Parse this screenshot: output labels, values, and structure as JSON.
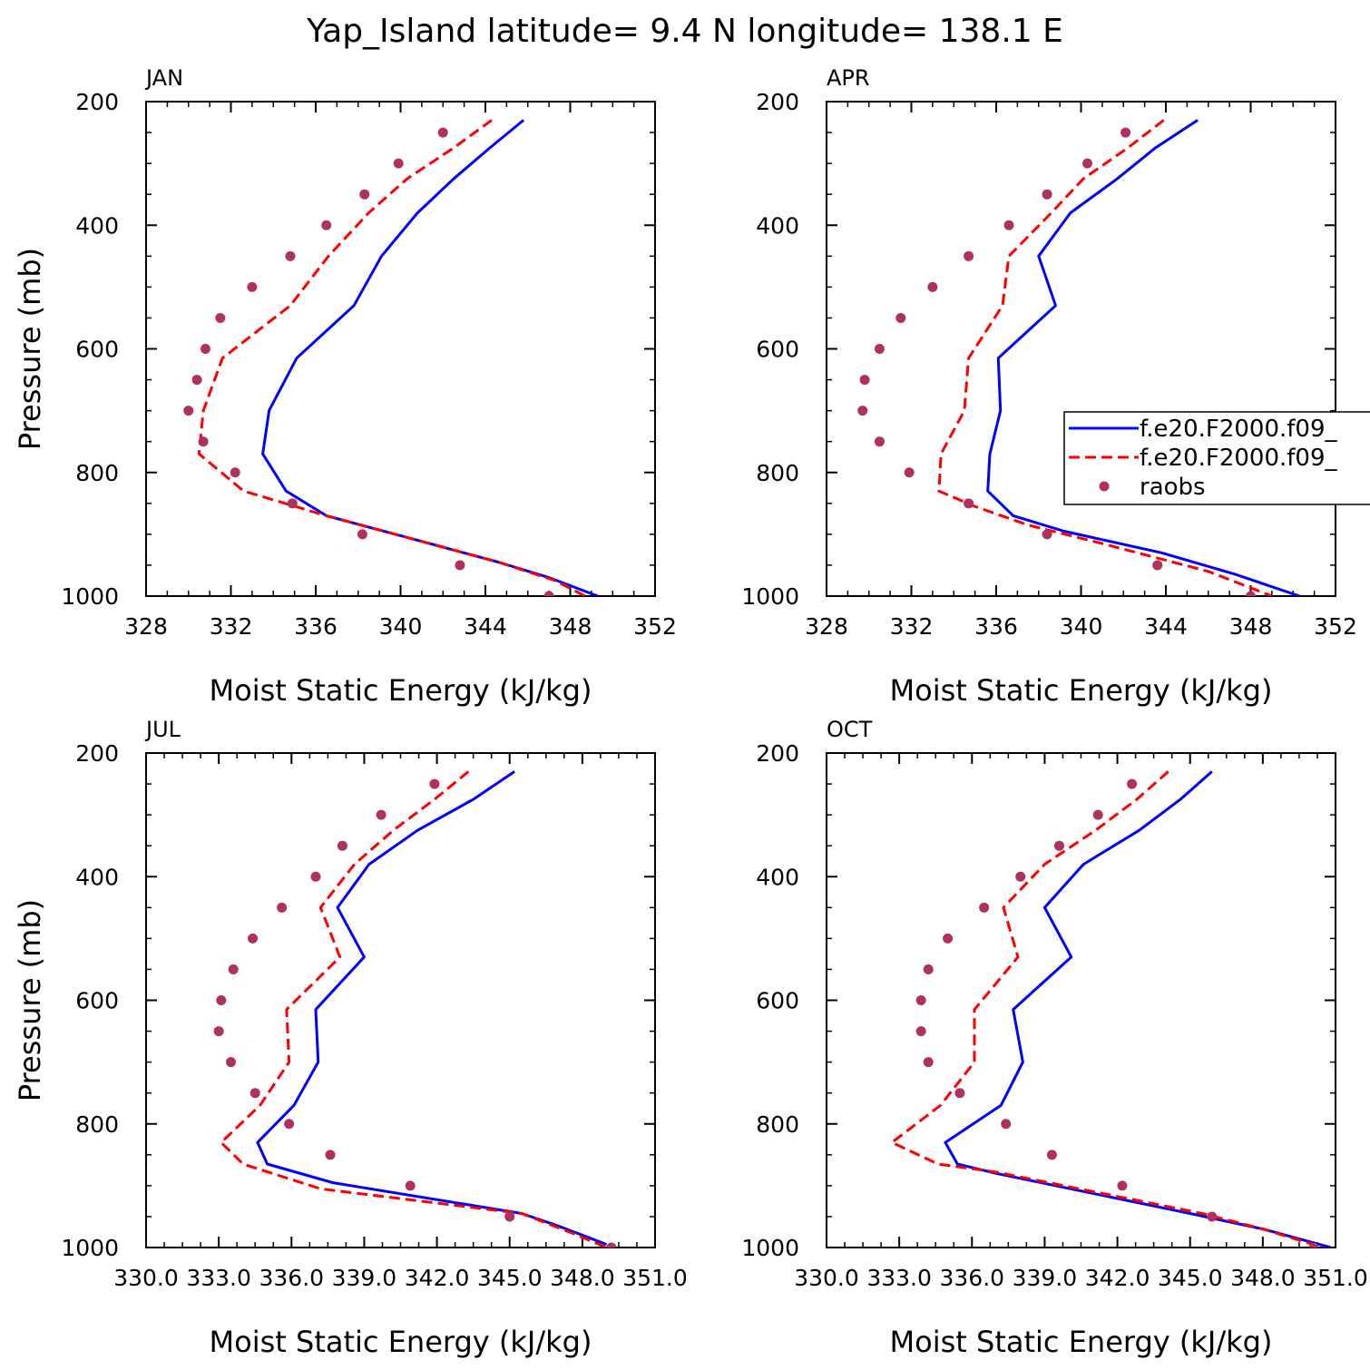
{
  "title": "Yap_Island  latitude= 9.4 N longitude= 138.1 E",
  "legend": {
    "entries": [
      {
        "label": "f.e20.F2000.f09_",
        "style": "solid",
        "color": "#0000ff"
      },
      {
        "label": "f.e20.F2000.f09_",
        "style": "dashed",
        "color": "#ff0000"
      },
      {
        "label": "raobs",
        "style": "dot",
        "color": "#b03060"
      }
    ]
  },
  "chart_data": [
    {
      "type": "line",
      "panel": "JAN",
      "xlabel": "Moist Static Energy (kJ/kg)",
      "ylabel": "Pressure (mb)",
      "xlim": [
        328,
        352
      ],
      "ylim": [
        200,
        1000
      ],
      "xticks": [
        "328",
        "332",
        "336",
        "340",
        "344",
        "348",
        "352"
      ],
      "yticks": [
        "200",
        "400",
        "600",
        "800",
        "1000"
      ],
      "series": [
        {
          "name": "f.e20.F2000.f09_",
          "style": "solid",
          "color": "#0000ff",
          "points": [
            [
              345.8,
              230
            ],
            [
              344.2,
              275
            ],
            [
              342.5,
              325
            ],
            [
              340.8,
              380
            ],
            [
              339.1,
              450
            ],
            [
              337.8,
              530
            ],
            [
              335.1,
              615
            ],
            [
              333.8,
              700
            ],
            [
              333.5,
              770
            ],
            [
              334.6,
              830
            ],
            [
              336.5,
              870
            ],
            [
              340.5,
              907
            ],
            [
              344.6,
              945
            ],
            [
              347.0,
              970
            ],
            [
              349.3,
              1000
            ]
          ]
        },
        {
          "name": "f.e20.F2000.f09_",
          "style": "dashed",
          "color": "#ff0000",
          "points": [
            [
              344.3,
              230
            ],
            [
              342.5,
              275
            ],
            [
              340.3,
              325
            ],
            [
              338.5,
              380
            ],
            [
              336.6,
              450
            ],
            [
              334.8,
              530
            ],
            [
              331.6,
              615
            ],
            [
              330.7,
              700
            ],
            [
              330.5,
              770
            ],
            [
              332.6,
              830
            ],
            [
              336.5,
              870
            ],
            [
              340.5,
              907
            ],
            [
              344.6,
              945
            ],
            [
              347.3,
              975
            ],
            [
              348.7,
              1000
            ]
          ]
        },
        {
          "name": "raobs",
          "style": "dot",
          "color": "#b03060",
          "points": [
            [
              342.0,
              250
            ],
            [
              339.9,
              300
            ],
            [
              338.3,
              350
            ],
            [
              336.5,
              400
            ],
            [
              334.8,
              450
            ],
            [
              333.0,
              500
            ],
            [
              331.5,
              550
            ],
            [
              330.8,
              600
            ],
            [
              330.4,
              650
            ],
            [
              330.0,
              700
            ],
            [
              330.7,
              750
            ],
            [
              332.2,
              800
            ],
            [
              334.9,
              850
            ],
            [
              338.2,
              900
            ],
            [
              342.8,
              950
            ],
            [
              347.0,
              1000
            ]
          ]
        }
      ]
    },
    {
      "type": "line",
      "panel": "APR",
      "xlabel": "Moist Static Energy (kJ/kg)",
      "ylabel": "",
      "xlim": [
        328,
        352
      ],
      "ylim": [
        200,
        1000
      ],
      "xticks": [
        "328",
        "332",
        "336",
        "340",
        "344",
        "348",
        "352"
      ],
      "yticks": [
        "200",
        "400",
        "600",
        "800",
        "1000"
      ],
      "series": [
        {
          "name": "f.e20.F2000.f09_",
          "style": "solid",
          "color": "#0000ff",
          "points": [
            [
              345.5,
              230
            ],
            [
              343.5,
              275
            ],
            [
              341.7,
              325
            ],
            [
              339.5,
              380
            ],
            [
              338.0,
              450
            ],
            [
              338.8,
              530
            ],
            [
              336.1,
              615
            ],
            [
              336.2,
              700
            ],
            [
              335.7,
              770
            ],
            [
              335.6,
              830
            ],
            [
              336.8,
              870
            ],
            [
              339.2,
              895
            ],
            [
              343.8,
              930
            ],
            [
              347.3,
              965
            ],
            [
              350.3,
              1000
            ]
          ]
        },
        {
          "name": "f.e20.F2000.f09_",
          "style": "dashed",
          "color": "#ff0000",
          "points": [
            [
              343.9,
              230
            ],
            [
              342.2,
              275
            ],
            [
              340.1,
              325
            ],
            [
              338.6,
              380
            ],
            [
              336.6,
              450
            ],
            [
              336.3,
              530
            ],
            [
              334.7,
              615
            ],
            [
              334.5,
              700
            ],
            [
              333.4,
              770
            ],
            [
              333.3,
              830
            ],
            [
              335.0,
              855
            ],
            [
              337.5,
              885
            ],
            [
              341.0,
              915
            ],
            [
              346.0,
              960
            ],
            [
              349.0,
              1000
            ]
          ]
        },
        {
          "name": "raobs",
          "style": "dot",
          "color": "#b03060",
          "points": [
            [
              342.1,
              250
            ],
            [
              340.3,
              300
            ],
            [
              338.4,
              350
            ],
            [
              336.6,
              400
            ],
            [
              334.7,
              450
            ],
            [
              333.0,
              500
            ],
            [
              331.5,
              550
            ],
            [
              330.5,
              600
            ],
            [
              329.8,
              650
            ],
            [
              329.7,
              700
            ],
            [
              330.5,
              750
            ],
            [
              331.9,
              800
            ],
            [
              334.7,
              850
            ],
            [
              338.4,
              900
            ],
            [
              343.6,
              950
            ],
            [
              348.0,
              1000
            ]
          ]
        }
      ]
    },
    {
      "type": "line",
      "panel": "JUL",
      "xlabel": "Moist Static Energy (kJ/kg)",
      "ylabel": "Pressure (mb)",
      "xlim": [
        330.0,
        351.0
      ],
      "ylim": [
        200,
        1000
      ],
      "xticks": [
        "330.0",
        "333.0",
        "336.0",
        "339.0",
        "342.0",
        "345.0",
        "348.0",
        "351.0"
      ],
      "yticks": [
        "200",
        "400",
        "600",
        "800",
        "1000"
      ],
      "series": [
        {
          "name": "f.e20.F2000.f09_",
          "style": "solid",
          "color": "#0000ff",
          "points": [
            [
              345.2,
              230
            ],
            [
              343.5,
              275
            ],
            [
              341.2,
              325
            ],
            [
              339.2,
              380
            ],
            [
              337.9,
              450
            ],
            [
              339.0,
              530
            ],
            [
              337.0,
              615
            ],
            [
              337.1,
              700
            ],
            [
              336.1,
              770
            ],
            [
              334.6,
              830
            ],
            [
              335.0,
              865
            ],
            [
              337.7,
              895
            ],
            [
              345.5,
              945
            ],
            [
              347.0,
              965
            ],
            [
              349.0,
              995
            ]
          ]
        },
        {
          "name": "f.e20.F2000.f09_",
          "style": "dashed",
          "color": "#ff0000",
          "points": [
            [
              343.3,
              230
            ],
            [
              341.9,
              275
            ],
            [
              340.2,
              325
            ],
            [
              338.6,
              380
            ],
            [
              337.2,
              450
            ],
            [
              338.0,
              530
            ],
            [
              335.8,
              615
            ],
            [
              335.9,
              700
            ],
            [
              334.7,
              770
            ],
            [
              333.1,
              830
            ],
            [
              334.0,
              865
            ],
            [
              337.2,
              905
            ],
            [
              345.5,
              945
            ],
            [
              347.8,
              980
            ],
            [
              349.0,
              1000
            ]
          ]
        },
        {
          "name": "raobs",
          "style": "dot",
          "color": "#b03060",
          "points": [
            [
              341.9,
              250
            ],
            [
              339.7,
              300
            ],
            [
              338.1,
              350
            ],
            [
              337.0,
              400
            ],
            [
              335.6,
              450
            ],
            [
              334.4,
              500
            ],
            [
              333.6,
              550
            ],
            [
              333.1,
              600
            ],
            [
              333.0,
              650
            ],
            [
              333.5,
              700
            ],
            [
              334.5,
              750
            ],
            [
              335.9,
              800
            ],
            [
              337.6,
              850
            ],
            [
              340.9,
              900
            ],
            [
              345.0,
              950
            ],
            [
              349.2,
              1000
            ]
          ]
        }
      ]
    },
    {
      "type": "line",
      "panel": "OCT",
      "xlabel": "Moist Static Energy (kJ/kg)",
      "ylabel": "",
      "xlim": [
        330.0,
        351.0
      ],
      "ylim": [
        200,
        1000
      ],
      "xticks": [
        "330.0",
        "333.0",
        "336.0",
        "339.0",
        "342.0",
        "345.0",
        "348.0",
        "351.0"
      ],
      "yticks": [
        "200",
        "400",
        "600",
        "800",
        "1000"
      ],
      "series": [
        {
          "name": "f.e20.F2000.f09_",
          "style": "solid",
          "color": "#0000ff",
          "points": [
            [
              345.9,
              230
            ],
            [
              344.6,
              275
            ],
            [
              342.9,
              325
            ],
            [
              340.6,
              380
            ],
            [
              339.0,
              450
            ],
            [
              340.1,
              530
            ],
            [
              337.7,
              615
            ],
            [
              338.1,
              700
            ],
            [
              337.2,
              770
            ],
            [
              334.9,
              830
            ],
            [
              335.4,
              865
            ],
            [
              337.0,
              880
            ],
            [
              345.0,
              945
            ],
            [
              348.0,
              970
            ],
            [
              350.8,
              1000
            ]
          ]
        },
        {
          "name": "f.e20.F2000.f09_",
          "style": "dashed",
          "color": "#ff0000",
          "points": [
            [
              344.1,
              230
            ],
            [
              342.8,
              275
            ],
            [
              341.1,
              325
            ],
            [
              339.0,
              380
            ],
            [
              337.3,
              450
            ],
            [
              337.9,
              530
            ],
            [
              336.1,
              615
            ],
            [
              336.1,
              700
            ],
            [
              334.7,
              770
            ],
            [
              332.7,
              830
            ],
            [
              334.6,
              865
            ],
            [
              337.0,
              878
            ],
            [
              345.5,
              945
            ],
            [
              348.0,
              970
            ],
            [
              350.5,
              1000
            ]
          ]
        },
        {
          "name": "raobs",
          "style": "dot",
          "color": "#b03060",
          "points": [
            [
              342.6,
              250
            ],
            [
              341.2,
              300
            ],
            [
              339.6,
              350
            ],
            [
              338.0,
              400
            ],
            [
              336.5,
              450
            ],
            [
              335.0,
              500
            ],
            [
              334.2,
              550
            ],
            [
              333.9,
              600
            ],
            [
              333.9,
              650
            ],
            [
              334.2,
              700
            ],
            [
              335.5,
              750
            ],
            [
              337.4,
              800
            ],
            [
              339.3,
              850
            ],
            [
              342.2,
              900
            ],
            [
              345.9,
              950
            ],
            [
              350.1,
              1000
            ]
          ]
        }
      ]
    }
  ]
}
